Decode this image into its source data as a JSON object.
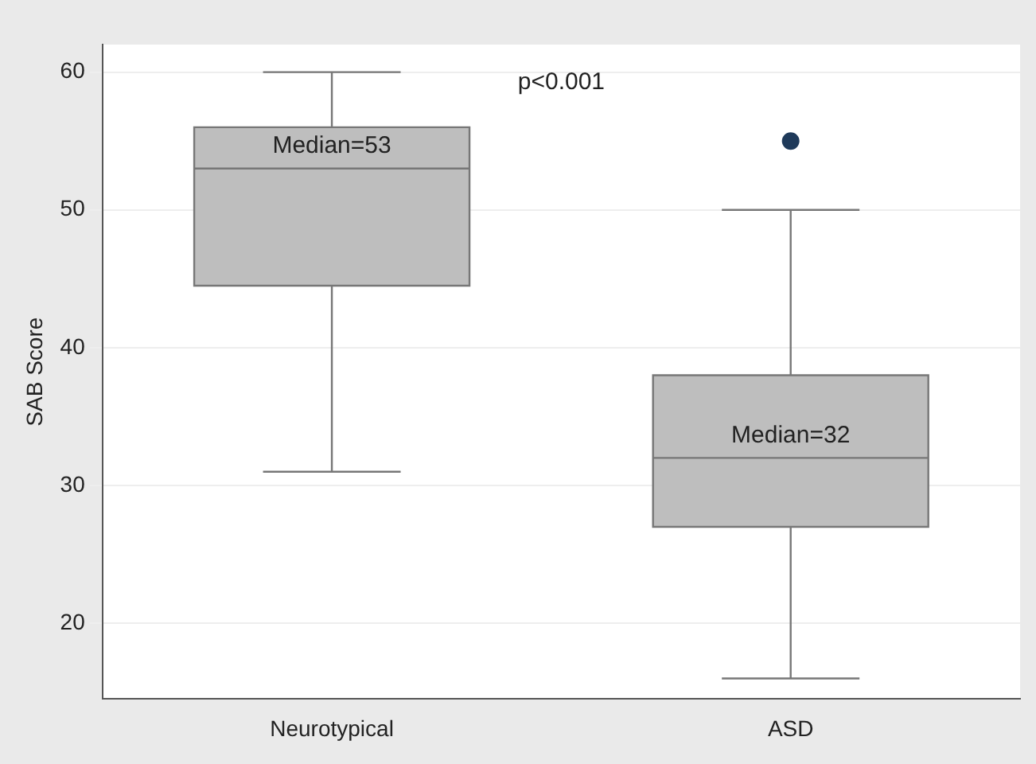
{
  "chart_data": {
    "type": "box",
    "categories": [
      "Neurotypical",
      "ASD"
    ],
    "boxes": [
      {
        "low": 31,
        "q1": 44.5,
        "median": 53,
        "q3": 56,
        "high": 60
      },
      {
        "low": 16,
        "q1": 27,
        "median": 32,
        "q3": 38,
        "high": 50,
        "outliers": [
          55
        ]
      }
    ],
    "color": "#bebebe",
    "ylabel": "SAB Score",
    "annotations": [
      "Median=53",
      "Median=32",
      "p<0.001"
    ],
    "ylim": [
      14.5,
      62
    ],
    "yticks": [
      20,
      30,
      40,
      50,
      60
    ],
    "grid": "y"
  }
}
